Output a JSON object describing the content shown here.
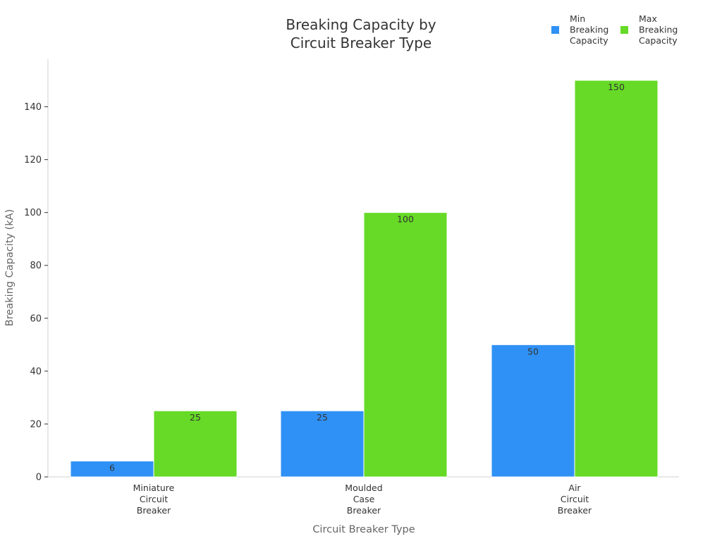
{
  "chart_data": {
    "type": "bar",
    "title": [
      "Breaking Capacity by",
      "Circuit Breaker Type"
    ],
    "xlabel": "Circuit Breaker Type",
    "ylabel": "Breaking Capacity (kA)",
    "categories": [
      [
        "Miniature",
        "Circuit",
        "Breaker"
      ],
      [
        "Moulded",
        "Case",
        "Breaker"
      ],
      [
        "Air",
        "Circuit",
        "Breaker"
      ]
    ],
    "series": [
      {
        "name": [
          "Min",
          "Breaking",
          "Capacity"
        ],
        "values": [
          6,
          25,
          50
        ],
        "color": "#2f91f5"
      },
      {
        "name": [
          "Max",
          "Breaking",
          "Capacity"
        ],
        "values": [
          25,
          100,
          150
        ],
        "color": "#66da26"
      }
    ],
    "ylim": [
      0,
      158
    ],
    "yticks": [
      0,
      20,
      40,
      60,
      80,
      100,
      120,
      140
    ],
    "grid": false,
    "legend_position": "top-right",
    "data_labels": true
  }
}
